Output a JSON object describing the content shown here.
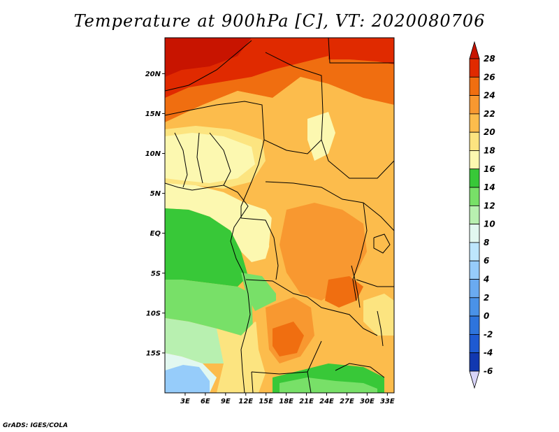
{
  "title": "Temperature at 900hPa [C], VT: 2020080706",
  "credit": "GrADS: IGES/COLA",
  "map": {
    "type": "heatmap",
    "variable_units": "C",
    "lat_range": [
      -20,
      24.5
    ],
    "lon_range": [
      0,
      34
    ],
    "y_ticks": [
      {
        "value": 20,
        "label": "20N"
      },
      {
        "value": 15,
        "label": "15N"
      },
      {
        "value": 10,
        "label": "10N"
      },
      {
        "value": 5,
        "label": "5N"
      },
      {
        "value": 0,
        "label": "EQ"
      },
      {
        "value": -5,
        "label": "5S"
      },
      {
        "value": -10,
        "label": "10S"
      },
      {
        "value": -15,
        "label": "15S"
      }
    ],
    "x_ticks": [
      {
        "value": 3,
        "label": "3E"
      },
      {
        "value": 6,
        "label": "6E"
      },
      {
        "value": 9,
        "label": "9E"
      },
      {
        "value": 12,
        "label": "12E"
      },
      {
        "value": 15,
        "label": "15E"
      },
      {
        "value": 18,
        "label": "18E"
      },
      {
        "value": 21,
        "label": "21E"
      },
      {
        "value": 24,
        "label": "24E"
      },
      {
        "value": 27,
        "label": "27E"
      },
      {
        "value": 30,
        "label": "30E"
      },
      {
        "value": 33,
        "label": "33E"
      }
    ]
  },
  "colorbar": {
    "levels": [
      "-6",
      "-4",
      "-2",
      "0",
      "2",
      "4",
      "6",
      "8",
      "10",
      "12",
      "14",
      "16",
      "18",
      "20",
      "22",
      "24",
      "26",
      "28"
    ],
    "colors": [
      "#0a1466",
      "#1238b0",
      "#1e5ad2",
      "#2e74dc",
      "#4a92e8",
      "#6aaaf0",
      "#96ccfa",
      "#bde6fc",
      "#e2f8f0",
      "#b8f0b0",
      "#78e068",
      "#38c838",
      "#fcf8b0",
      "#fce480",
      "#fcbc4c",
      "#f89830",
      "#f06e10",
      "#e02a00",
      "#c81400"
    ],
    "lower_color": "#d8d4f8"
  },
  "colors": {
    "hot": "#c81400",
    "warm": "#f89830",
    "mild": "#fce480",
    "cool": "#38c838"
  }
}
